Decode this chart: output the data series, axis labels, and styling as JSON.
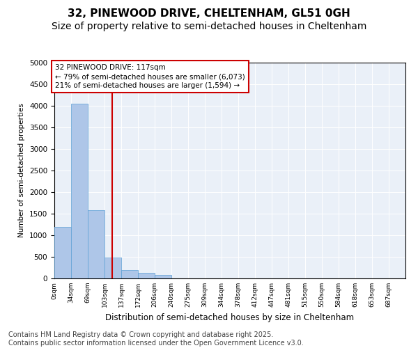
{
  "title_line1": "32, PINEWOOD DRIVE, CHELTENHAM, GL51 0GH",
  "title_line2": "Size of property relative to semi-detached houses in Cheltenham",
  "xlabel": "Distribution of semi-detached houses by size in Cheltenham",
  "ylabel": "Number of semi-detached properties",
  "footnote": "Contains HM Land Registry data © Crown copyright and database right 2025.\nContains public sector information licensed under the Open Government Licence v3.0.",
  "bin_labels": [
    "0sqm",
    "34sqm",
    "69sqm",
    "103sqm",
    "137sqm",
    "172sqm",
    "206sqm",
    "240sqm",
    "275sqm",
    "309sqm",
    "344sqm",
    "378sqm",
    "412sqm",
    "447sqm",
    "481sqm",
    "515sqm",
    "550sqm",
    "584sqm",
    "618sqm",
    "653sqm",
    "687sqm"
  ],
  "bar_values": [
    1200,
    4050,
    1580,
    480,
    200,
    130,
    80,
    0,
    0,
    0,
    0,
    0,
    0,
    0,
    0,
    0,
    0,
    0,
    0,
    0,
    0
  ],
  "bar_color": "#aec6e8",
  "bar_edge_color": "#5a9fd4",
  "property_line_x": 117,
  "bin_width": 34,
  "ylim": [
    0,
    5000
  ],
  "yticks": [
    0,
    500,
    1000,
    1500,
    2000,
    2500,
    3000,
    3500,
    4000,
    4500,
    5000
  ],
  "annotation_text": "32 PINEWOOD DRIVE: 117sqm\n← 79% of semi-detached houses are smaller (6,073)\n21% of semi-detached houses are larger (1,594) →",
  "annotation_box_color": "#ffffff",
  "annotation_box_edge": "#cc0000",
  "vline_color": "#cc0000",
  "background_color": "#eaf0f8",
  "title1_fontsize": 11,
  "title2_fontsize": 10,
  "footnote_fontsize": 7
}
